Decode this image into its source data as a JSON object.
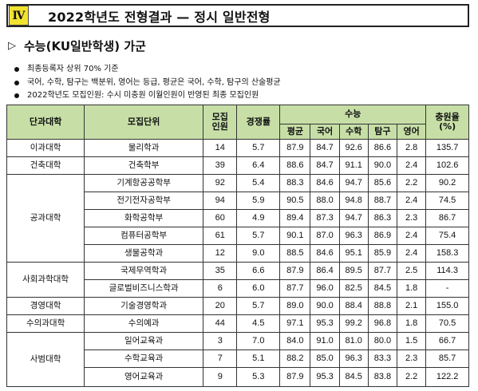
{
  "header": {
    "roman": "Ⅳ",
    "title": "2022학년도 전형결과 — 정시 일반전형"
  },
  "section": {
    "marker": "▷",
    "title": "수능(KU일반학생) 가군"
  },
  "notes": [
    "최종등록자 상위 70% 기준",
    "국어, 수학, 탐구는 백분위, 영어는 등급, 평균은 국어, 수학, 탐구의 산술평균",
    "2022학년도 모집인원: 수시 미충원 이월인원이 반영된 최종 모집인원"
  ],
  "table": {
    "headers": {
      "college": "단과대학",
      "dept": "모집단위",
      "quota": "모집\n인원",
      "competition": "경쟁률",
      "suneung": "수능",
      "avg": "평균",
      "korean": "국어",
      "math": "수학",
      "inquiry": "탐구",
      "english": "영어",
      "fill_rate": "충원율\n(%)"
    },
    "groups": [
      {
        "college": "이과대학",
        "rows": [
          {
            "dept": "물리학과",
            "quota": "14",
            "comp": "5.7",
            "avg": "87.9",
            "kor": "84.7",
            "math": "92.6",
            "inq": "86.6",
            "eng": "2.8",
            "fill": "135.7"
          }
        ]
      },
      {
        "college": "건축대학",
        "rows": [
          {
            "dept": "건축학부",
            "quota": "39",
            "comp": "6.4",
            "avg": "88.6",
            "kor": "84.7",
            "math": "91.1",
            "inq": "90.0",
            "eng": "2.4",
            "fill": "102.6"
          }
        ]
      },
      {
        "college": "공과대학",
        "rows": [
          {
            "dept": "기계항공공학부",
            "quota": "92",
            "comp": "5.4",
            "avg": "88.3",
            "kor": "84.6",
            "math": "94.7",
            "inq": "85.6",
            "eng": "2.2",
            "fill": "90.2"
          },
          {
            "dept": "전기전자공학부",
            "quota": "94",
            "comp": "5.9",
            "avg": "90.5",
            "kor": "88.0",
            "math": "94.8",
            "inq": "88.7",
            "eng": "2.4",
            "fill": "74.5"
          },
          {
            "dept": "화학공학부",
            "quota": "60",
            "comp": "4.9",
            "avg": "89.4",
            "kor": "87.3",
            "math": "94.7",
            "inq": "86.3",
            "eng": "2.3",
            "fill": "86.7"
          },
          {
            "dept": "컴퓨터공학부",
            "quota": "61",
            "comp": "5.7",
            "avg": "90.1",
            "kor": "87.0",
            "math": "96.3",
            "inq": "86.9",
            "eng": "2.4",
            "fill": "75.4"
          },
          {
            "dept": "생물공학과",
            "quota": "12",
            "comp": "9.0",
            "avg": "88.5",
            "kor": "84.6",
            "math": "95.1",
            "inq": "85.9",
            "eng": "2.4",
            "fill": "158.3"
          }
        ]
      },
      {
        "college": "사회과학대학",
        "rows": [
          {
            "dept": "국제무역학과",
            "quota": "35",
            "comp": "6.6",
            "avg": "87.9",
            "kor": "86.4",
            "math": "89.5",
            "inq": "87.7",
            "eng": "2.5",
            "fill": "114.3"
          },
          {
            "dept": "글로벌비즈니스학과",
            "quota": "6",
            "comp": "6.0",
            "avg": "87.7",
            "kor": "96.0",
            "math": "82.5",
            "inq": "84.5",
            "eng": "1.8",
            "fill": "-"
          }
        ]
      },
      {
        "college": "경영대학",
        "rows": [
          {
            "dept": "기술경영학과",
            "quota": "20",
            "comp": "5.7",
            "avg": "89.0",
            "kor": "90.0",
            "math": "88.4",
            "inq": "88.8",
            "eng": "2.1",
            "fill": "155.0"
          }
        ]
      },
      {
        "college": "수의과대학",
        "rows": [
          {
            "dept": "수의예과",
            "quota": "44",
            "comp": "4.5",
            "avg": "97.1",
            "kor": "95.3",
            "math": "99.2",
            "inq": "96.8",
            "eng": "1.8",
            "fill": "70.5"
          }
        ]
      },
      {
        "college": "사범대학",
        "rows": [
          {
            "dept": "일어교육과",
            "quota": "3",
            "comp": "7.0",
            "avg": "84.0",
            "kor": "91.0",
            "math": "81.0",
            "inq": "80.0",
            "eng": "1.5",
            "fill": "66.7"
          },
          {
            "dept": "수학교육과",
            "quota": "7",
            "comp": "5.1",
            "avg": "88.2",
            "kor": "85.0",
            "math": "96.3",
            "inq": "83.3",
            "eng": "2.3",
            "fill": "85.7"
          },
          {
            "dept": "영어교육과",
            "quota": "9",
            "comp": "5.3",
            "avg": "87.9",
            "kor": "95.3",
            "math": "84.5",
            "inq": "83.8",
            "eng": "2.2",
            "fill": "122.2"
          }
        ]
      }
    ]
  }
}
